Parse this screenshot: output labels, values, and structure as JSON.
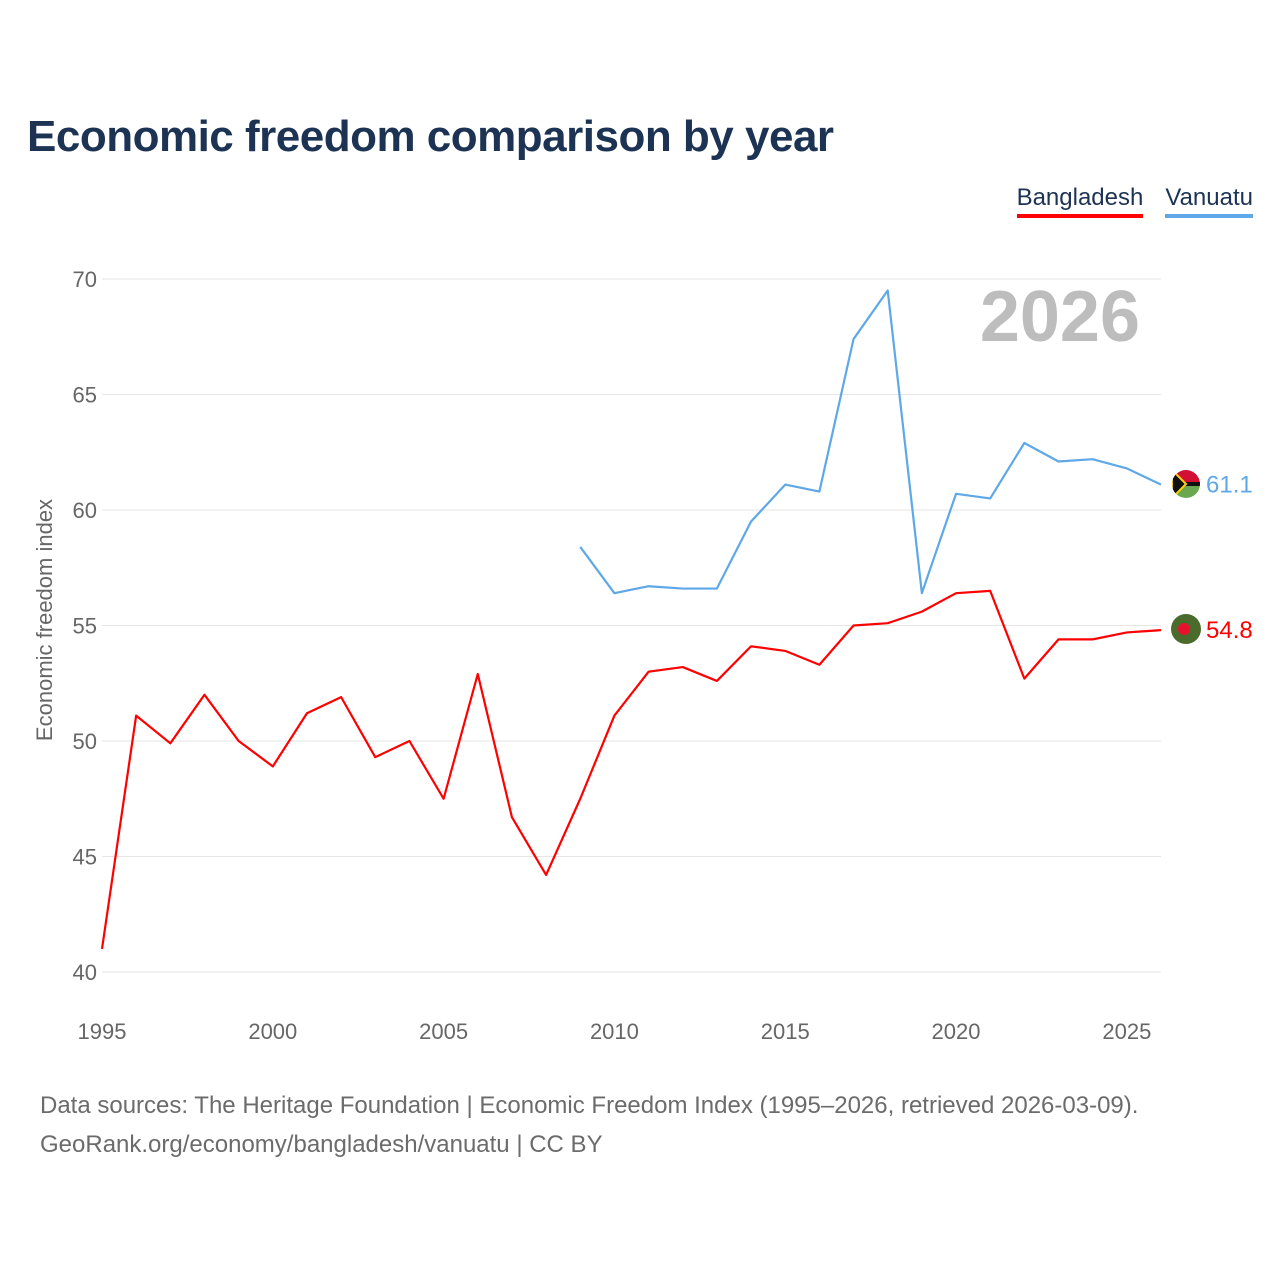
{
  "title": "Economic freedom comparison by year",
  "legend": [
    "Bangladesh",
    "Vanuatu"
  ],
  "sources": {
    "line1": "Data sources: The Heritage Foundation | Economic Freedom Index (1995–2026, retrieved 2026-03-09).",
    "line2": "GeoRank.org/economy/bangladesh/vanuatu | CC BY"
  },
  "chart_data": {
    "type": "line",
    "title": "Economic freedom comparison by year",
    "ylabel": "Economic freedom index",
    "xlabel": "",
    "year_watermark": "2026",
    "ylim": [
      40,
      70
    ],
    "xlim": [
      1995,
      2026
    ],
    "yticks": [
      40,
      45,
      50,
      55,
      60,
      65,
      70
    ],
    "xticks": [
      1995,
      2000,
      2005,
      2010,
      2015,
      2020,
      2025
    ],
    "grid": true,
    "legend_position": "top-right",
    "series": [
      {
        "name": "Bangladesh",
        "color": "#ff0000",
        "end_label": "54.8",
        "x": [
          1995,
          1996,
          1997,
          1998,
          1999,
          2000,
          2001,
          2002,
          2003,
          2004,
          2005,
          2006,
          2007,
          2008,
          2009,
          2010,
          2011,
          2012,
          2013,
          2014,
          2015,
          2016,
          2017,
          2018,
          2019,
          2020,
          2021,
          2022,
          2023,
          2024,
          2025,
          2026
        ],
        "values": [
          41.0,
          51.1,
          49.9,
          52.0,
          50.0,
          48.9,
          51.2,
          51.9,
          49.3,
          50.0,
          47.5,
          52.9,
          46.7,
          44.2,
          47.5,
          51.1,
          53.0,
          53.2,
          52.6,
          54.1,
          53.9,
          53.3,
          55.0,
          55.1,
          55.6,
          56.4,
          56.5,
          52.7,
          54.4,
          54.4,
          54.7,
          54.8
        ]
      },
      {
        "name": "Vanuatu",
        "color": "#5ea8e8",
        "end_label": "61.1",
        "x": [
          2009,
          2010,
          2011,
          2012,
          2013,
          2014,
          2015,
          2016,
          2017,
          2018,
          2019,
          2020,
          2021,
          2022,
          2023,
          2024,
          2025,
          2026
        ],
        "values": [
          58.4,
          56.4,
          56.7,
          56.6,
          56.6,
          59.5,
          61.1,
          60.8,
          67.4,
          69.5,
          56.4,
          60.7,
          60.5,
          62.9,
          62.1,
          62.2,
          61.8,
          61.1
        ]
      }
    ]
  }
}
